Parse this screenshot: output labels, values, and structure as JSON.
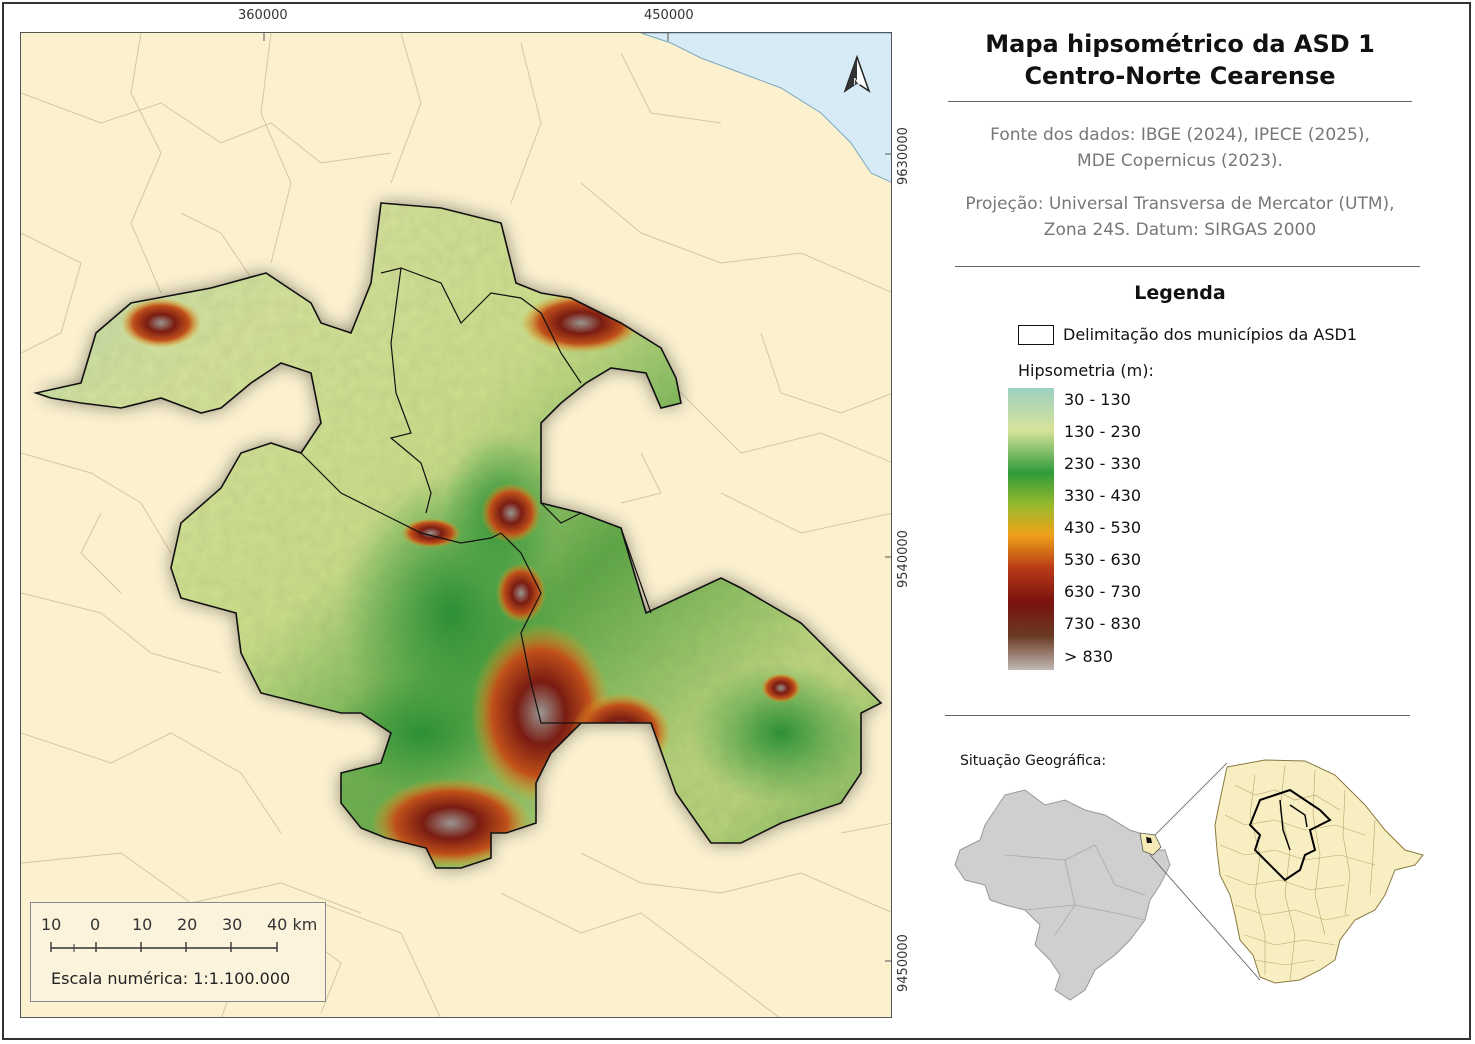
{
  "map": {
    "title_line1": "Mapa hipsométrico da ASD 1",
    "title_line2": "Centro-Norte Cearense",
    "source_line1": "Fonte dos dados: IBGE (2024), IPECE (2025),",
    "source_line2": "MDE Copernicus (2023).",
    "projection_line1": "Projeção: Universal Transversa de Mercator (UTM),",
    "projection_line2": "Zona 24S. Datum: SIRGAS 2000",
    "x_ticks": [
      "360000",
      "450000"
    ],
    "y_ticks": [
      "9630000",
      "9540000",
      "9450000"
    ]
  },
  "legend": {
    "title": "Legenda",
    "boundary_label": "Delimitação dos municípios da ASD1",
    "hypsometry_title": "Hipsometria (m):",
    "classes": [
      "30 - 130",
      "130 - 230",
      "230 - 330",
      "330 - 430",
      "430 - 530",
      "530 - 630",
      "630 - 730",
      "730 - 830",
      "> 830"
    ],
    "colors": [
      "#9cd0c0",
      "#d8e39a",
      "#2f9b3c",
      "#9cba2c",
      "#f0a21a",
      "#b83a16",
      "#7a1210",
      "#6a3a24",
      "#c2b9b4"
    ]
  },
  "scale": {
    "labels": [
      "10",
      "0",
      "10",
      "20",
      "30",
      "40 km"
    ],
    "numeric": "Escala numérica: 1:1.100.000"
  },
  "situation": {
    "label": "Situação Geográfica:"
  },
  "colors": {
    "ocean": "#d6ebf5",
    "land": "#fbf1cf",
    "brazil": "#cfcfcf"
  }
}
